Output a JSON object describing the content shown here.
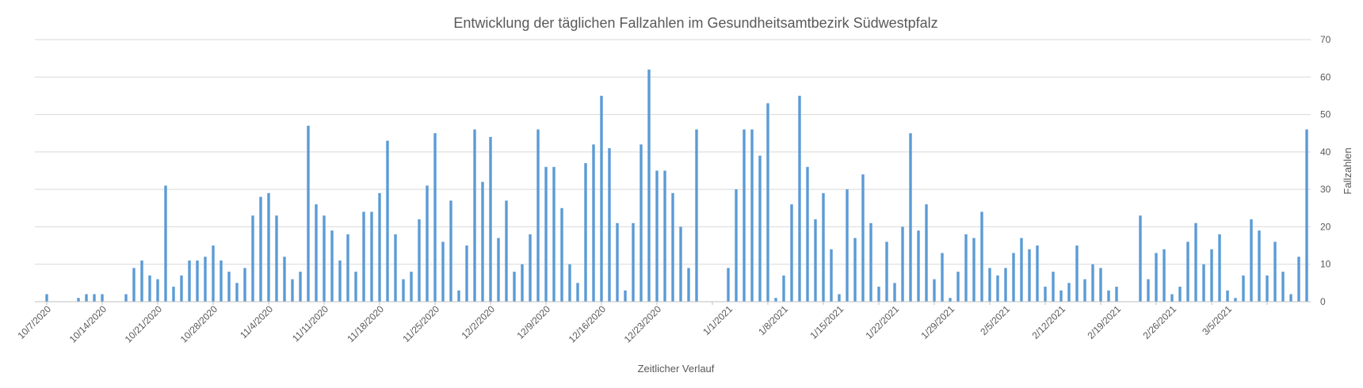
{
  "chart_data": {
    "type": "bar",
    "title": "Entwicklung der täglichen Fallzahlen im Gesundheitsamtbezirk Südwestpfalz",
    "xlabel": "Zeitlicher Verlauf",
    "ylabel": "Fallzahlen",
    "ylim": [
      0,
      70
    ],
    "yticks": [
      0,
      10,
      20,
      30,
      40,
      50,
      60,
      70
    ],
    "y_axis_side": "right",
    "grid": true,
    "bar_color": "#5b9bd5",
    "x_start": "2020-10-06",
    "x_end": "2021-03-10",
    "x_tick_labels": [
      "10/7/2020",
      "10/14/2020",
      "10/21/2020",
      "10/28/2020",
      "11/4/2020",
      "11/11/2020",
      "11/18/2020",
      "11/25/2020",
      "12/2/2020",
      "12/9/2020",
      "12/16/2020",
      "12/23/2020",
      "1/1/2021",
      "1/8/2021",
      "1/15/2021",
      "1/22/2021",
      "1/29/2021",
      "2/5/2021",
      "2/12/2021",
      "2/19/2021",
      "2/26/2021",
      "3/5/2021"
    ],
    "values": [
      0,
      2,
      0,
      0,
      0,
      1,
      2,
      2,
      2,
      0,
      0,
      2,
      9,
      11,
      7,
      6,
      31,
      4,
      7,
      11,
      11,
      12,
      15,
      11,
      8,
      5,
      9,
      23,
      28,
      29,
      23,
      12,
      6,
      8,
      47,
      26,
      23,
      19,
      11,
      18,
      8,
      24,
      24,
      29,
      43,
      18,
      6,
      8,
      22,
      31,
      45,
      16,
      27,
      3,
      15,
      46,
      32,
      44,
      17,
      27,
      8,
      10,
      18,
      46,
      36,
      36,
      25,
      10,
      5,
      37,
      42,
      55,
      41,
      21,
      3,
      21,
      42,
      62,
      35,
      35,
      29,
      20,
      9,
      46,
      0,
      0,
      0,
      9,
      30,
      46,
      46,
      39,
      53,
      1,
      7,
      26,
      55,
      36,
      22,
      29,
      14,
      2,
      30,
      17,
      34,
      21,
      4,
      16,
      5,
      20,
      45,
      19,
      26,
      6,
      13,
      1,
      8,
      18,
      17,
      24,
      9,
      7,
      9,
      13,
      17,
      14,
      15,
      4,
      8,
      3,
      5,
      15,
      6,
      10,
      9,
      3,
      4,
      0,
      0,
      23,
      6,
      13,
      14,
      2,
      4,
      16,
      21,
      10,
      14,
      18,
      3,
      1,
      7,
      22,
      19,
      7,
      16,
      8,
      2,
      12,
      46
    ]
  }
}
